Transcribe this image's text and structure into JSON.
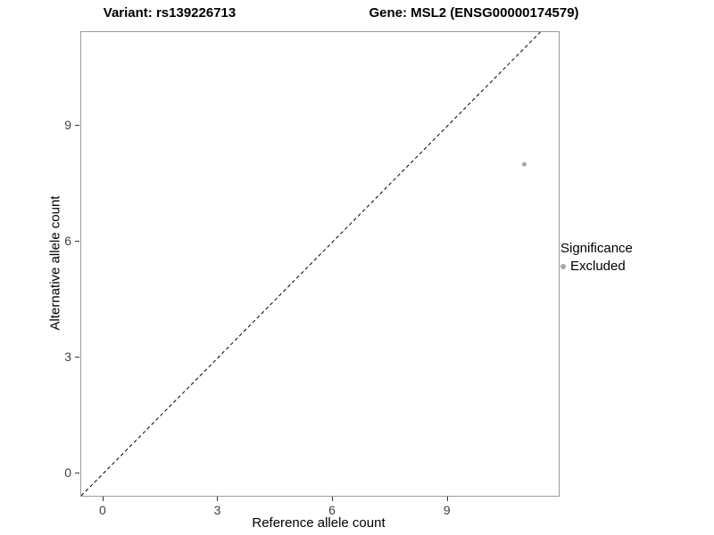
{
  "chart_data": {
    "type": "scatter",
    "title_left": "Variant: rs139226713",
    "title_right": "Gene: MSL2 (ENSG00000174579)",
    "xlabel": "Reference allele count",
    "ylabel": "Alternative allele count",
    "xlim": [
      -0.58,
      11.9
    ],
    "ylim": [
      -0.58,
      11.42
    ],
    "xticks": [
      0,
      3,
      6,
      9
    ],
    "yticks": [
      0,
      3,
      6,
      9
    ],
    "grid": false,
    "points": [
      {
        "x": 11,
        "y": 8,
        "series": "Excluded",
        "color": "#a8a8a8"
      }
    ],
    "identity_line": {
      "style": "dashed",
      "color": "#000000",
      "equation": "y = x"
    },
    "legend": {
      "title": "Significance",
      "position": "right",
      "entries": [
        {
          "label": "Excluded",
          "color": "#a8a8a8"
        }
      ]
    }
  }
}
